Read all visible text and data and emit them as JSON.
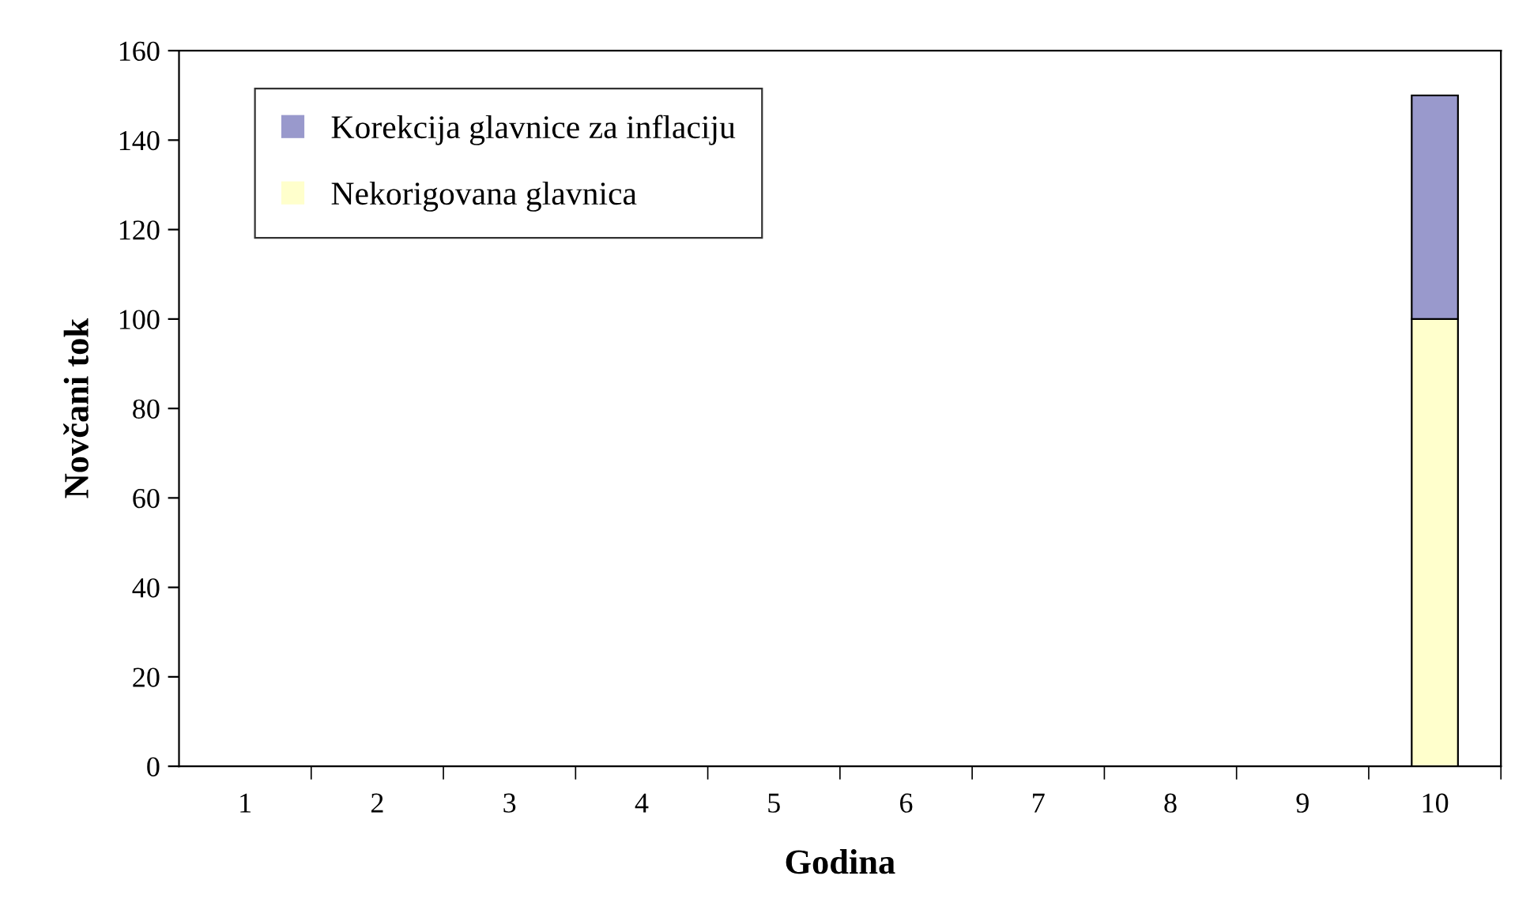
{
  "chart_data": {
    "type": "bar",
    "stacked": true,
    "xlabel": "Godina",
    "ylabel": "Novčani tok",
    "categories": [
      "1",
      "2",
      "3",
      "4",
      "5",
      "6",
      "7",
      "8",
      "9",
      "10"
    ],
    "series": [
      {
        "name": "Nekorigovana glavnica",
        "color": "#ffffcc",
        "values": [
          0,
          0,
          0,
          0,
          0,
          0,
          0,
          0,
          0,
          100
        ]
      },
      {
        "name": "Korekcija glavnice za inflaciju",
        "color": "#9999cc",
        "values": [
          0,
          0,
          0,
          0,
          0,
          0,
          0,
          0,
          0,
          50
        ]
      }
    ],
    "ylim": [
      0,
      160
    ],
    "yticks": [
      0,
      20,
      40,
      60,
      80,
      100,
      120,
      140,
      160
    ],
    "grid": false,
    "legend": "top left"
  }
}
